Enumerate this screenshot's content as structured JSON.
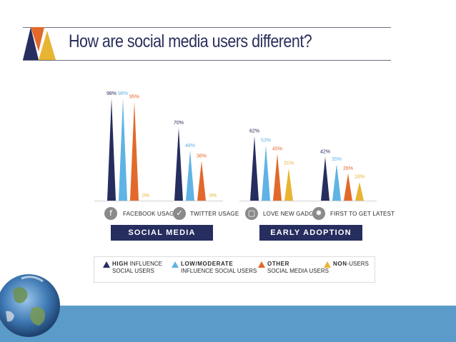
{
  "colors": {
    "high": "#262d5f",
    "low": "#5fb3e5",
    "other": "#e2692b",
    "non": "#e8b532",
    "band": "#5b9bc9"
  },
  "title": "How are social media users different?",
  "chart_data": {
    "type": "bar",
    "title": "How are social media users different?",
    "categories": [
      "FACEBOOK USAGE",
      "TWITTER USAGE",
      "LOVE NEW GADGETS",
      "FIRST TO GET LATEST"
    ],
    "groups": [
      {
        "label": "SOCIAL MEDIA USAGE",
        "categories": [
          "FACEBOOK USAGE",
          "TWITTER USAGE"
        ]
      },
      {
        "label": "EARLY ADOPTION",
        "categories": [
          "LOVE NEW GADGETS",
          "FIRST TO GET LATEST"
        ]
      }
    ],
    "series": [
      {
        "key": "high",
        "values": [
          98,
          70,
          62,
          42
        ]
      },
      {
        "key": "low",
        "values": [
          98,
          48,
          53,
          35
        ]
      },
      {
        "key": "other",
        "values": [
          95,
          38,
          45,
          26
        ]
      },
      {
        "key": "non",
        "values": [
          0,
          0,
          31,
          18
        ]
      }
    ],
    "labels": [
      [
        "98%",
        "70%",
        "62%",
        "42%"
      ],
      [
        "98%",
        "48%",
        "53%",
        "35%"
      ],
      [
        "95%",
        "38%",
        "45%",
        "26%"
      ],
      [
        "0%",
        "0%",
        "31%",
        "18%"
      ]
    ],
    "ylim": [
      0,
      100
    ],
    "grid": false,
    "legend": {
      "position": "bottom",
      "items": [
        {
          "strong": "HIGH",
          "rest": "INFLUENCE",
          "line2": "SOCIAL USERS"
        },
        {
          "strong": "LOW/MODERATE",
          "rest": "",
          "line2": "INFLUENCE SOCIAL USERS"
        },
        {
          "strong": "OTHER",
          "rest": "",
          "line2": "SOCIAL MEDIA USERS"
        },
        {
          "strong": "NON",
          "rest": "-USERS",
          "line2": ""
        }
      ]
    }
  },
  "icons": [
    "facebook-icon",
    "twitter-icon",
    "gadget-icon",
    "star-burst-icon"
  ]
}
